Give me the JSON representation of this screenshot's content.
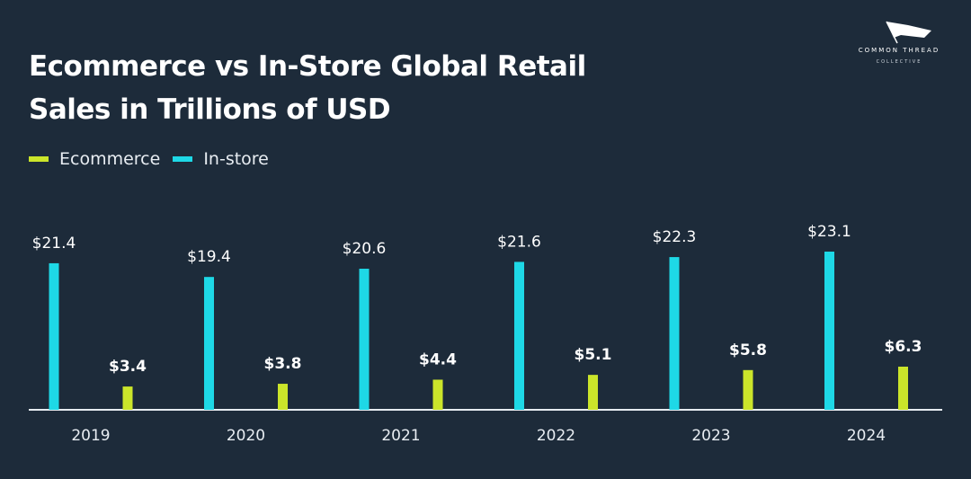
{
  "title_line1": "Ecommerce vs In-Store Global Retail",
  "title_line2": "Sales in Trillions of USD",
  "logo": {
    "line1": "COMMON THREAD",
    "line2": "COLLECTIVE",
    "icon": "flag-icon"
  },
  "colors": {
    "background": "#1d2b3a",
    "ecommerce": "#cbe52a",
    "instore": "#1ed8e6",
    "text": "#ffffff"
  },
  "chart_data": {
    "type": "bar",
    "categories": [
      "2019",
      "2020",
      "2021",
      "2022",
      "2023",
      "2024"
    ],
    "series": [
      {
        "name": "In-store",
        "values": [
          21.4,
          19.4,
          20.6,
          21.6,
          22.3,
          23.1
        ],
        "labels": [
          "$21.4",
          "$19.4",
          "$20.6",
          "$21.6",
          "$22.3",
          "$23.1"
        ],
        "color": "#1ed8e6"
      },
      {
        "name": "Ecommerce",
        "values": [
          3.4,
          3.8,
          4.4,
          5.1,
          5.8,
          6.3
        ],
        "labels": [
          "$3.4",
          "$3.8",
          "$4.4",
          "$5.1",
          "$5.8",
          "$6.3"
        ],
        "color": "#cbe52a"
      }
    ],
    "legend": [
      "Ecommerce",
      "In-store"
    ],
    "legend_position": "top-left",
    "grid": false
  }
}
